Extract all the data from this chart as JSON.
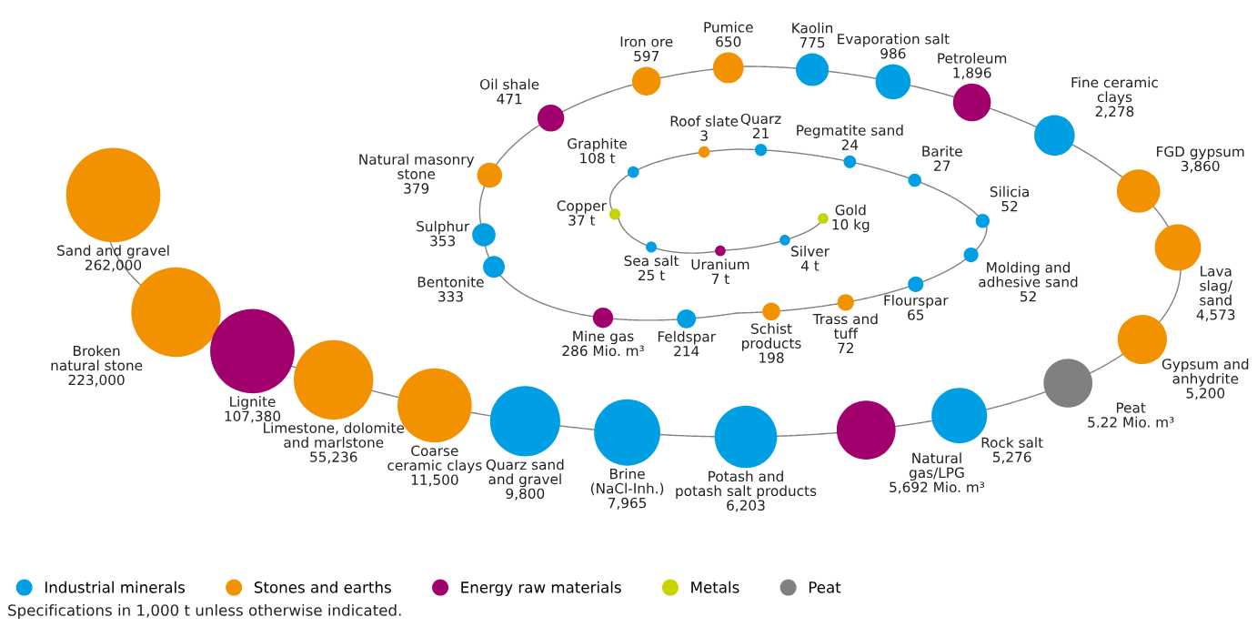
{
  "chart_data": {
    "type": "other",
    "categories": [
      "Sand and gravel",
      "Broken\nnatural stone",
      "Lignite",
      "Limestone, dolomite\nand marlstone",
      "Coarse\nceramic clays",
      "Quarz sand\nand gravel",
      "Brine\n(NaCl-Inh.)",
      "Potash and\npotash salt products",
      "Natural\ngas/LPG",
      "Rock salt",
      "Peat",
      "Gypsum and\nanhydrite",
      "Lava\nslag/\nsand",
      "FGD gypsum",
      "Fine ceramic\nclays",
      "Petroleum",
      "Evaporation salt",
      "Kaolin",
      "Pumice",
      "Iron ore",
      "Oil shale",
      "Natural masonry\nstone",
      "Sulphur",
      "Bentonite",
      "Mine gas",
      "Feldspar",
      "Schist\nproducts",
      "Trass and\ntuff",
      "Flourspar",
      "Molding and\nadhesive sand",
      "Silicia",
      "Barite",
      "Pegmatite sand",
      "Quarz",
      "Roof slate",
      "Graphite",
      "Copper",
      "Sea salt",
      "Uranium",
      "Silver",
      "Gold"
    ],
    "series": [
      {
        "name": "Industrial minerals",
        "color": "#009fe3",
        "values": [
          null,
          null,
          null,
          null,
          null,
          9800,
          7965,
          6203,
          null,
          5276,
          null,
          null,
          null,
          null,
          2278,
          null,
          986,
          775,
          null,
          null,
          null,
          null,
          353,
          333,
          null,
          214,
          null,
          null,
          65,
          52,
          52,
          27,
          24,
          21,
          null,
          108,
          null,
          25,
          null,
          4,
          null
        ],
        "value_labels": [
          null,
          null,
          null,
          null,
          null,
          "9,800",
          "7,965",
          "6,203",
          null,
          "5,276",
          null,
          null,
          null,
          null,
          "2,278",
          null,
          "986",
          "775",
          null,
          null,
          null,
          null,
          "353",
          "333",
          null,
          "214",
          null,
          null,
          "65",
          "52",
          "52",
          "27",
          "24",
          "21",
          null,
          "108 t",
          null,
          "25 t",
          null,
          "4 t",
          null
        ]
      },
      {
        "name": "Stones and earths",
        "color": "#f39200",
        "values": [
          262000,
          223000,
          null,
          55236,
          11500,
          null,
          null,
          null,
          null,
          null,
          null,
          5200,
          4573,
          3860,
          null,
          null,
          null,
          null,
          650,
          597,
          null,
          379,
          null,
          null,
          null,
          null,
          198,
          72,
          null,
          null,
          null,
          null,
          null,
          null,
          3,
          null,
          null,
          null,
          null,
          null,
          null
        ],
        "value_labels": [
          "262,000",
          "223,000",
          null,
          "55,236",
          "11,500",
          null,
          null,
          null,
          null,
          null,
          null,
          "5,200",
          "4,573",
          "3,860",
          null,
          null,
          null,
          null,
          "650",
          "597",
          null,
          "379",
          null,
          null,
          null,
          null,
          "198",
          "72",
          null,
          null,
          null,
          null,
          null,
          null,
          "3",
          null,
          null,
          null,
          null,
          null,
          null
        ]
      },
      {
        "name": "Energy raw materials",
        "color": "#a2006d",
        "values": [
          null,
          null,
          107380,
          null,
          null,
          null,
          null,
          null,
          5692,
          null,
          null,
          null,
          null,
          null,
          null,
          1896,
          null,
          null,
          null,
          null,
          471,
          null,
          null,
          null,
          286,
          null,
          null,
          null,
          null,
          null,
          null,
          null,
          null,
          null,
          null,
          null,
          null,
          null,
          7,
          null,
          null
        ],
        "value_labels": [
          null,
          null,
          "107,380",
          null,
          null,
          null,
          null,
          null,
          "5,692 Mio. m³",
          null,
          null,
          null,
          null,
          null,
          null,
          "1,896",
          null,
          null,
          null,
          null,
          "471",
          null,
          null,
          null,
          "286 Mio. m³",
          null,
          null,
          null,
          null,
          null,
          null,
          null,
          null,
          null,
          null,
          null,
          null,
          null,
          "7 t",
          null,
          null
        ]
      },
      {
        "name": "Metals",
        "color": "#c8d400",
        "values": [
          null,
          null,
          null,
          null,
          null,
          null,
          null,
          null,
          null,
          null,
          null,
          null,
          null,
          null,
          null,
          null,
          null,
          null,
          null,
          null,
          null,
          null,
          null,
          null,
          null,
          null,
          null,
          null,
          null,
          null,
          null,
          null,
          null,
          null,
          null,
          null,
          37,
          null,
          null,
          null,
          10
        ],
        "value_labels": [
          null,
          null,
          null,
          null,
          null,
          null,
          null,
          null,
          null,
          null,
          null,
          null,
          null,
          null,
          null,
          null,
          null,
          null,
          null,
          null,
          null,
          null,
          null,
          null,
          null,
          null,
          null,
          null,
          null,
          null,
          null,
          null,
          null,
          null,
          null,
          null,
          "37 t",
          null,
          null,
          null,
          "10 kg"
        ]
      },
      {
        "name": "Peat",
        "color": "#808080",
        "values": [
          null,
          null,
          null,
          null,
          null,
          null,
          null,
          null,
          null,
          null,
          5.22,
          null,
          null,
          null,
          null,
          null,
          null,
          null,
          null,
          null,
          null,
          null,
          null,
          null,
          null,
          null,
          null,
          null,
          null,
          null,
          null,
          null,
          null,
          null,
          null,
          null,
          null,
          null,
          null,
          null,
          null
        ],
        "value_labels": [
          null,
          null,
          null,
          null,
          null,
          null,
          null,
          null,
          null,
          null,
          "5.22 Mio. m³",
          null,
          null,
          null,
          null,
          null,
          null,
          null,
          null,
          null,
          null,
          null,
          null,
          null,
          null,
          null,
          null,
          null,
          null,
          null,
          null,
          null,
          null,
          null,
          null,
          null,
          null,
          null,
          null,
          null,
          null
        ]
      }
    ],
    "legend": "bottom left",
    "annotations": [
      "Specifications in 1,000 t unless otherwise indicated."
    ]
  }
}
